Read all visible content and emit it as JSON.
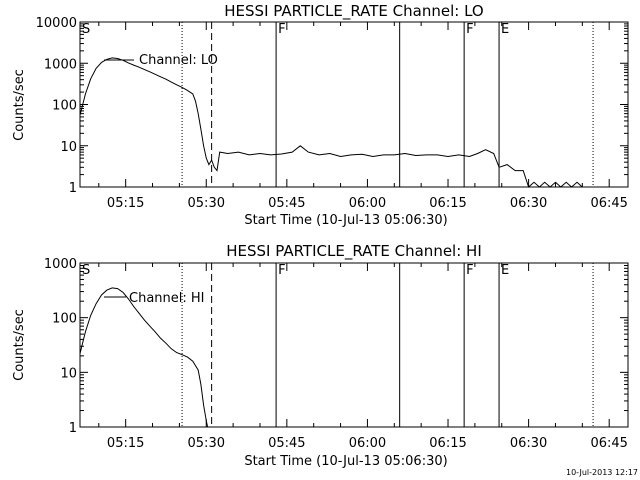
{
  "footer_timestamp": "10-Jul-2013 12:17",
  "chart_data": [
    {
      "type": "line",
      "title": "HESSI PARTICLE_RATE Channel: LO",
      "xlabel": "Start Time (10-Jul-13 05:06:30)",
      "ylabel": "Counts/sec",
      "yscale": "log",
      "x_unit": "time of day (HH:MM)",
      "xlim": [
        "05:06:30",
        "06:48:30"
      ],
      "ylim": [
        1,
        10000
      ],
      "x_ticks": [
        "05:15",
        "05:30",
        "05:45",
        "06:00",
        "06:15",
        "06:30",
        "06:45"
      ],
      "y_ticks": [
        {
          "value": 1,
          "label": "1"
        },
        {
          "value": 10,
          "label": "10"
        },
        {
          "value": 100,
          "label": "100"
        },
        {
          "value": 1000,
          "label": "1000"
        },
        {
          "value": 10000,
          "label": "10000"
        }
      ],
      "legend": {
        "label": "Channel: LO",
        "placement": "top-left"
      },
      "markers": [
        {
          "time": "05:06:30",
          "style": "solid",
          "label": "S"
        },
        {
          "time": "05:25:30",
          "style": "dotted",
          "label": ""
        },
        {
          "time": "05:31:00",
          "style": "dashed",
          "label": ""
        },
        {
          "time": "05:43:00",
          "style": "solid",
          "label": "F"
        },
        {
          "time": "06:06:00",
          "style": "solid",
          "label": ""
        },
        {
          "time": "06:18:00",
          "style": "solid",
          "label": "F"
        },
        {
          "time": "06:24:30",
          "style": "solid",
          "label": "E"
        },
        {
          "time": "06:42:00",
          "style": "dotted",
          "label": ""
        }
      ],
      "series": [
        {
          "name": "Channel: LO",
          "points": [
            [
              "05:06:30",
              55
            ],
            [
              "05:07:30",
              180
            ],
            [
              "05:08:30",
              420
            ],
            [
              "05:09:30",
              750
            ],
            [
              "05:10:30",
              1050
            ],
            [
              "05:11:30",
              1250
            ],
            [
              "05:12:30",
              1350
            ],
            [
              "05:13:30",
              1300
            ],
            [
              "05:14:30",
              1180
            ],
            [
              "05:15:30",
              1020
            ],
            [
              "05:16:30",
              900
            ],
            [
              "05:17:30",
              800
            ],
            [
              "05:18:30",
              700
            ],
            [
              "05:19:30",
              620
            ],
            [
              "05:20:30",
              540
            ],
            [
              "05:21:30",
              470
            ],
            [
              "05:22:30",
              410
            ],
            [
              "05:23:30",
              350
            ],
            [
              "05:24:30",
              300
            ],
            [
              "05:25:30",
              260
            ],
            [
              "05:26:30",
              220
            ],
            [
              "05:27:30",
              180
            ],
            [
              "05:28:00",
              120
            ],
            [
              "05:28:30",
              60
            ],
            [
              "05:29:00",
              25
            ],
            [
              "05:29:30",
              10
            ],
            [
              "05:30:00",
              5
            ],
            [
              "05:30:30",
              3.5
            ],
            [
              "05:31:00",
              4.5
            ],
            [
              "05:31:30",
              3
            ],
            [
              "05:32:00",
              2.5
            ],
            [
              "05:32:30",
              7
            ],
            [
              "05:34:00",
              6.5
            ],
            [
              "05:36:00",
              7
            ],
            [
              "05:38:00",
              6
            ],
            [
              "05:40:00",
              6.5
            ],
            [
              "05:42:00",
              6
            ],
            [
              "05:44:00",
              6.3
            ],
            [
              "05:46:00",
              7
            ],
            [
              "05:47:30",
              10
            ],
            [
              "05:49:00",
              7
            ],
            [
              "05:51:00",
              6
            ],
            [
              "05:53:00",
              6.5
            ],
            [
              "05:55:00",
              5.5
            ],
            [
              "05:57:00",
              6
            ],
            [
              "05:59:00",
              6.2
            ],
            [
              "06:01:00",
              5.5
            ],
            [
              "06:03:00",
              6
            ],
            [
              "06:05:00",
              6
            ],
            [
              "06:07:00",
              6.5
            ],
            [
              "06:09:00",
              5.8
            ],
            [
              "06:11:00",
              6
            ],
            [
              "06:13:00",
              6
            ],
            [
              "06:15:00",
              5.5
            ],
            [
              "06:17:00",
              6
            ],
            [
              "06:19:00",
              5.5
            ],
            [
              "06:20:30",
              6.5
            ],
            [
              "06:22:00",
              8
            ],
            [
              "06:23:30",
              6.5
            ],
            [
              "06:24:30",
              3
            ],
            [
              "06:26:00",
              3.5
            ],
            [
              "06:27:30",
              2.5
            ],
            [
              "06:29:00",
              2.5
            ],
            [
              "06:30:00",
              1
            ],
            [
              "06:31:00",
              1.3
            ],
            [
              "06:32:00",
              1
            ],
            [
              "06:33:00",
              1.3
            ],
            [
              "06:34:00",
              1
            ],
            [
              "06:35:00",
              1.3
            ],
            [
              "06:36:00",
              1
            ],
            [
              "06:37:00",
              1.3
            ],
            [
              "06:38:00",
              1
            ],
            [
              "06:39:00",
              1.3
            ],
            [
              "06:40:00",
              1
            ]
          ]
        }
      ]
    },
    {
      "type": "line",
      "title": "HESSI PARTICLE_RATE Channel: HI",
      "xlabel": "Start Time (10-Jul-13 05:06:30)",
      "ylabel": "Counts/sec",
      "yscale": "log",
      "x_unit": "time of day (HH:MM)",
      "xlim": [
        "05:06:30",
        "06:48:30"
      ],
      "ylim": [
        1,
        1000
      ],
      "x_ticks": [
        "05:15",
        "05:30",
        "05:45",
        "06:00",
        "06:15",
        "06:30",
        "06:45"
      ],
      "y_ticks": [
        {
          "value": 1,
          "label": "1"
        },
        {
          "value": 10,
          "label": "10"
        },
        {
          "value": 100,
          "label": "100"
        },
        {
          "value": 1000,
          "label": "1000"
        }
      ],
      "legend": {
        "label": "Channel: HI",
        "placement": "top-left"
      },
      "markers": [
        {
          "time": "05:06:30",
          "style": "solid",
          "label": "S"
        },
        {
          "time": "05:25:30",
          "style": "dotted",
          "label": ""
        },
        {
          "time": "05:31:00",
          "style": "dashed",
          "label": ""
        },
        {
          "time": "05:43:00",
          "style": "solid",
          "label": "F"
        },
        {
          "time": "06:06:00",
          "style": "solid",
          "label": ""
        },
        {
          "time": "06:18:00",
          "style": "solid",
          "label": "F"
        },
        {
          "time": "06:24:30",
          "style": "solid",
          "label": "E"
        },
        {
          "time": "06:42:00",
          "style": "dotted",
          "label": ""
        }
      ],
      "series": [
        {
          "name": "Channel: HI",
          "points": [
            [
              "05:06:30",
              22
            ],
            [
              "05:07:30",
              55
            ],
            [
              "05:08:30",
              110
            ],
            [
              "05:09:30",
              180
            ],
            [
              "05:10:30",
              260
            ],
            [
              "05:11:30",
              320
            ],
            [
              "05:12:30",
              350
            ],
            [
              "05:13:30",
              340
            ],
            [
              "05:14:30",
              290
            ],
            [
              "05:15:30",
              220
            ],
            [
              "05:16:30",
              160
            ],
            [
              "05:17:30",
              120
            ],
            [
              "05:18:30",
              90
            ],
            [
              "05:19:30",
              70
            ],
            [
              "05:20:30",
              55
            ],
            [
              "05:21:30",
              42
            ],
            [
              "05:22:30",
              34
            ],
            [
              "05:23:30",
              27
            ],
            [
              "05:24:30",
              23
            ],
            [
              "05:25:30",
              21
            ],
            [
              "05:26:30",
              19
            ],
            [
              "05:27:30",
              16
            ],
            [
              "05:28:30",
              11
            ],
            [
              "05:29:00",
              6
            ],
            [
              "05:29:30",
              2.5
            ],
            [
              "05:30:00",
              1.3
            ],
            [
              "05:30:15",
              1
            ]
          ]
        }
      ]
    }
  ]
}
